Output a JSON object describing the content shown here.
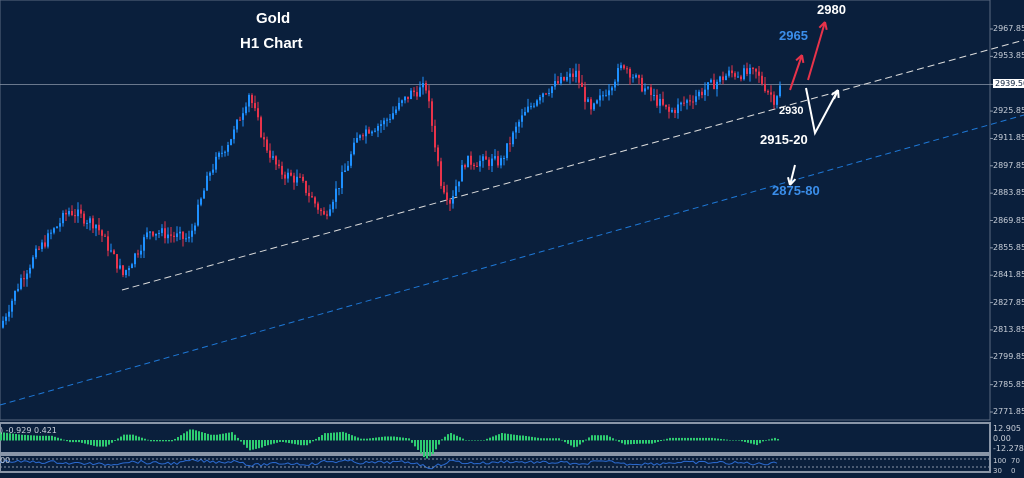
{
  "chart_data": {
    "type": "candlestick",
    "title": "Gold",
    "subtitle": "H1  Chart",
    "y_ticks": [
      "2967.85",
      "2953.85",
      "2939.50",
      "2925.85",
      "2911.85",
      "2897.85",
      "2883.85",
      "2869.85",
      "2855.85",
      "2841.85",
      "2827.85",
      "2813.85",
      "2799.85",
      "2785.85",
      "2771.85"
    ],
    "ylim": [
      2771.85,
      2967.85
    ],
    "current_price": "2939.50",
    "price_path": [
      [
        0,
        2815
      ],
      [
        7,
        2840
      ],
      [
        13,
        2855
      ],
      [
        23,
        2875
      ],
      [
        32,
        2868
      ],
      [
        41,
        2842
      ],
      [
        50,
        2865
      ],
      [
        63,
        2860
      ],
      [
        70,
        2895
      ],
      [
        78,
        2915
      ],
      [
        83,
        2935
      ],
      [
        88,
        2910
      ],
      [
        93,
        2895
      ],
      [
        100,
        2890
      ],
      [
        108,
        2872
      ],
      [
        115,
        2895
      ],
      [
        120,
        2915
      ],
      [
        128,
        2920
      ],
      [
        137,
        2935
      ],
      [
        142,
        2938
      ],
      [
        147,
        2890
      ],
      [
        150,
        2880
      ],
      [
        155,
        2900
      ],
      [
        167,
        2900
      ],
      [
        173,
        2920
      ],
      [
        180,
        2935
      ],
      [
        192,
        2945
      ],
      [
        197,
        2925
      ],
      [
        208,
        2950
      ],
      [
        213,
        2940
      ],
      [
        223,
        2925
      ],
      [
        233,
        2935
      ],
      [
        243,
        2945
      ],
      [
        252,
        2945
      ],
      [
        258,
        2932
      ],
      [
        260,
        2938
      ]
    ],
    "colors": {
      "up": "#1e90ff",
      "down": "#e8334a",
      "background": "#0a1f3c",
      "support": "#ffffff",
      "channel": "#1e78d7"
    },
    "annotations": [
      {
        "text": "2980",
        "color": "#ffffff"
      },
      {
        "text": "2965",
        "color": "#3b8eea"
      },
      {
        "text": "2930",
        "color": "#ffffff"
      },
      {
        "text": "2915-20",
        "color": "#ffffff"
      },
      {
        "text": "2875-80",
        "color": "#3b8eea"
      }
    ],
    "macd": {
      "label": ") -0.929 0.421",
      "ticks": [
        "12.905",
        "0.00",
        "-12.278"
      ]
    },
    "rsi": {
      "label": "00",
      "ticks": [
        "100",
        "70",
        "30",
        "0"
      ]
    }
  }
}
